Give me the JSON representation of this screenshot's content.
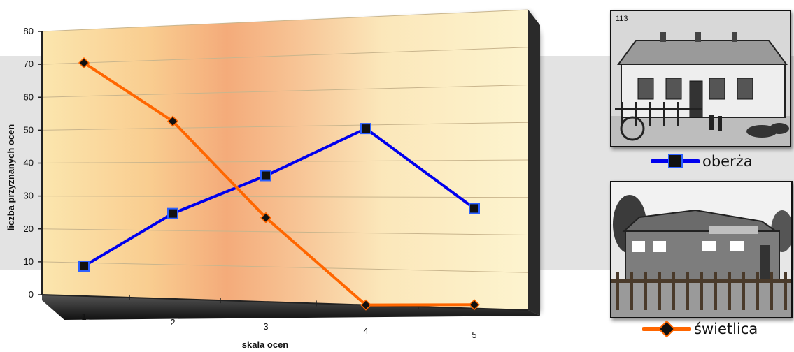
{
  "chart_data": {
    "type": "line",
    "x": [
      1,
      2,
      3,
      4,
      5
    ],
    "xlabel": "skala ocen",
    "ylabel": "liczba przyznanych ocen",
    "ylim": [
      0,
      80
    ],
    "yticks": [
      0,
      10,
      20,
      30,
      40,
      50,
      60,
      70,
      80
    ],
    "xticks": [
      "1",
      "2",
      "3",
      "4",
      "5"
    ],
    "grid": true,
    "legend_position": "right",
    "series": [
      {
        "name": "oberża",
        "values": [
          9,
          25,
          36,
          49,
          27
        ],
        "color": "#0000ee",
        "marker": "square"
      },
      {
        "name": "świetlica",
        "values": [
          70,
          52,
          24,
          0,
          1
        ],
        "color": "#ff6600",
        "marker": "diamond"
      }
    ]
  },
  "photos": {
    "inn_caption": "113"
  }
}
